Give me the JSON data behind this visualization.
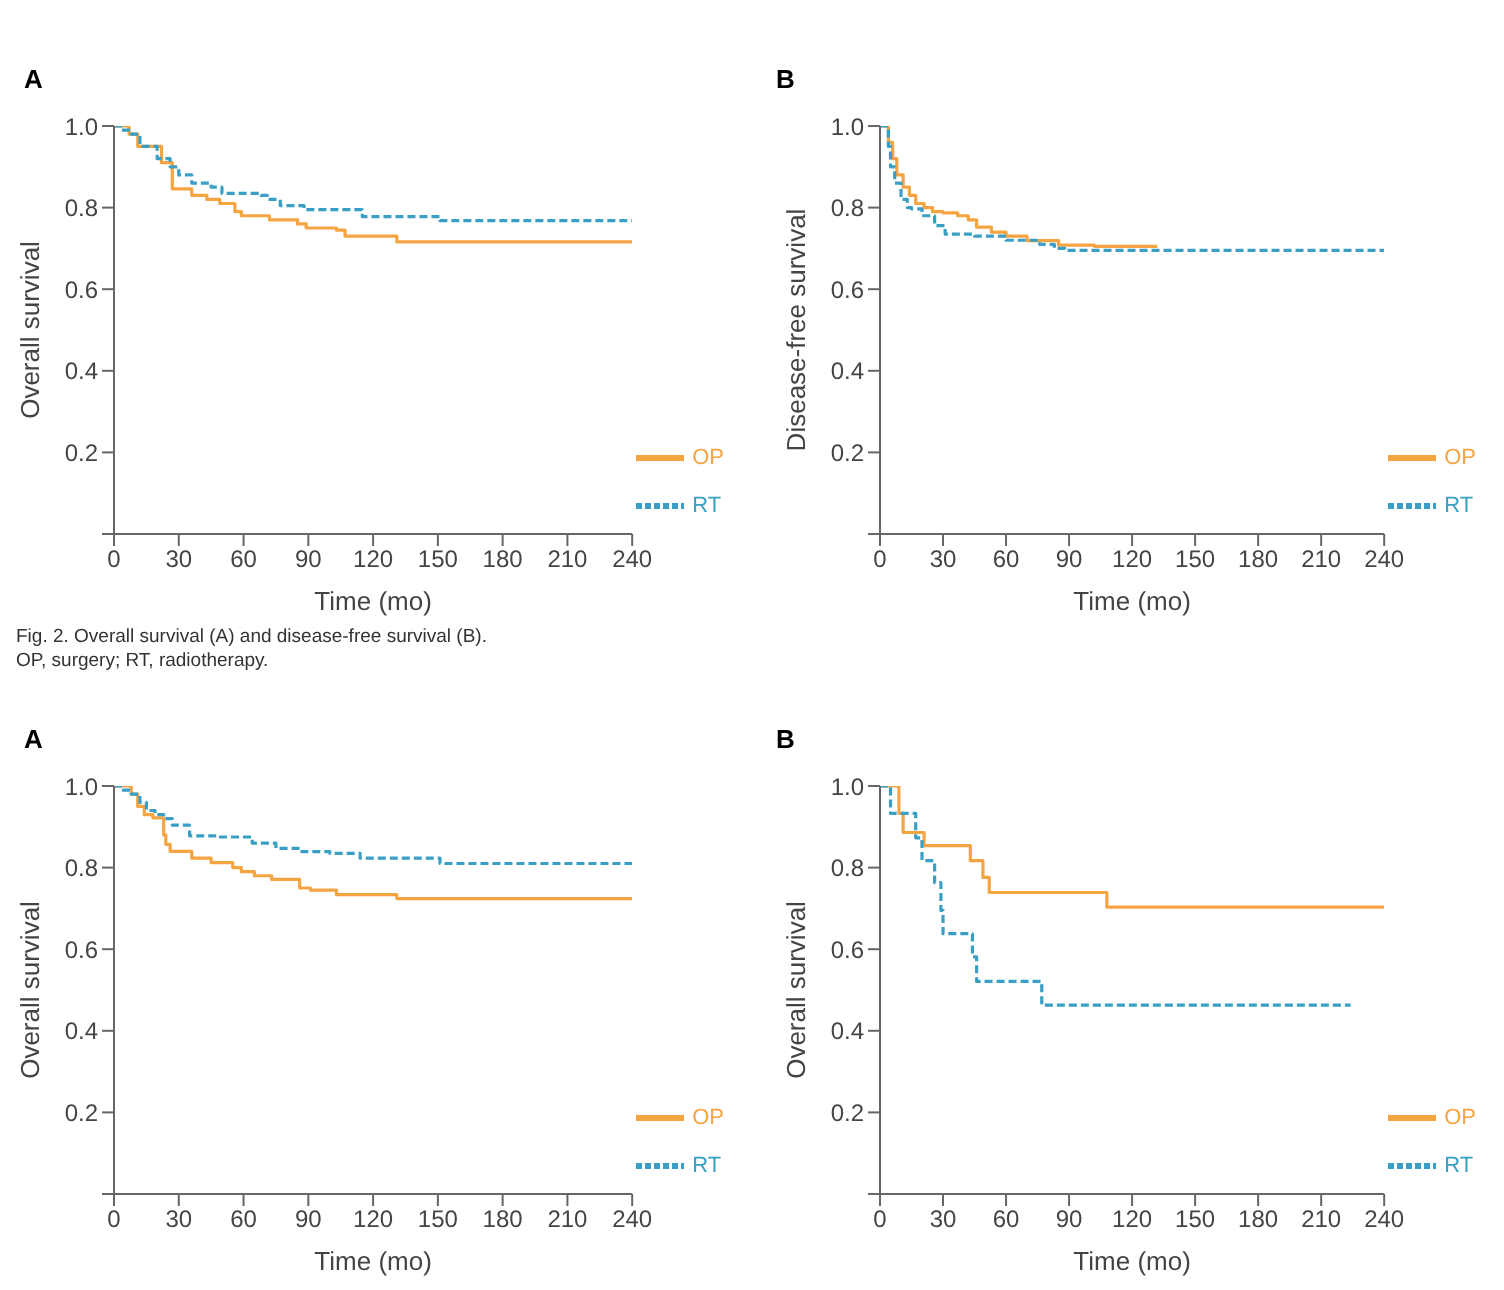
{
  "chart_data": [
    {
      "type": "step",
      "title": "A",
      "xlabel": "Time (mo)",
      "ylabel": "Overall survival",
      "xlim": [
        0,
        240
      ],
      "xticks": [
        0,
        30,
        60,
        90,
        120,
        150,
        180,
        210,
        240
      ],
      "ylim": [
        0,
        1
      ],
      "yticks": [
        {
          "value": 0,
          "label": null
        },
        0.2,
        0.4,
        0.6,
        {
          "value": 0.8,
          "label": "0.8"
        },
        {
          "value": 1,
          "label": "1.0"
        }
      ],
      "grid": false,
      "legend": "bottom right",
      "annotations": [
        "Fig. 2. Overall survival (A) and disease-free survival (B).",
        "OP, surgery; RT, radiotherapy."
      ],
      "series": [
        {
          "name": "OP",
          "color": "#f5a442",
          "line_style": "solid",
          "x": [
            0,
            7,
            11,
            22,
            27,
            36,
            43,
            49,
            56,
            59,
            72,
            85,
            89,
            103,
            107,
            131,
            240
          ],
          "values": [
            1,
            0.98,
            0.95,
            0.91,
            0.846,
            0.83,
            0.82,
            0.81,
            0.79,
            0.78,
            0.77,
            0.76,
            0.75,
            0.745,
            0.73,
            0.716,
            0.716
          ]
        },
        {
          "name": "RT",
          "color": "#3a9fc4",
          "line_style": "dashed",
          "x": [
            0,
            3,
            8,
            12,
            20,
            26,
            30,
            36,
            45,
            50,
            68,
            71,
            77,
            88,
            115,
            151,
            240
          ],
          "values": [
            1,
            0.99,
            0.98,
            0.95,
            0.92,
            0.9,
            0.88,
            0.86,
            0.85,
            0.835,
            0.83,
            0.82,
            0.805,
            0.795,
            0.778,
            0.768,
            0.768
          ]
        }
      ]
    },
    {
      "type": "step",
      "title": "B",
      "xlabel": "Time (mo)",
      "ylabel": "Disease-free survival",
      "xlim": [
        0,
        240
      ],
      "xticks": [
        0,
        30,
        60,
        90,
        120,
        150,
        180,
        210,
        240
      ],
      "ylim": [
        0,
        1
      ],
      "yticks": [
        {
          "value": 0,
          "label": null
        },
        0.2,
        0.4,
        0.6,
        {
          "value": 0.8,
          "label": "0.8"
        },
        {
          "value": 1,
          "label": "1.0"
        }
      ],
      "grid": false,
      "legend": "bottom right",
      "series": [
        {
          "name": "OP",
          "color": "#f5a442",
          "line_style": "solid",
          "x": [
            0,
            4,
            6,
            8,
            11,
            14,
            17,
            21,
            25,
            30,
            37,
            42,
            46,
            53,
            60,
            70,
            85,
            102,
            132
          ],
          "values": [
            1,
            0.96,
            0.92,
            0.88,
            0.85,
            0.83,
            0.81,
            0.8,
            0.79,
            0.787,
            0.78,
            0.77,
            0.752,
            0.74,
            0.73,
            0.719,
            0.708,
            0.705,
            0.705
          ]
        },
        {
          "name": "RT",
          "color": "#3a9fc4",
          "line_style": "dashed",
          "x": [
            0,
            4,
            5,
            7,
            10,
            13,
            15,
            20,
            26,
            31,
            45,
            60,
            76,
            83,
            88,
            240
          ],
          "values": [
            1,
            0.95,
            0.9,
            0.86,
            0.82,
            0.8,
            0.797,
            0.78,
            0.756,
            0.735,
            0.73,
            0.72,
            0.71,
            0.7,
            0.695,
            0.695
          ]
        }
      ]
    },
    {
      "type": "step",
      "title": "A",
      "xlabel": "Time (mo)",
      "ylabel": "Overall survival",
      "xlim": [
        0,
        240
      ],
      "xticks": [
        0,
        30,
        60,
        90,
        120,
        150,
        180,
        210,
        240
      ],
      "ylim": [
        0,
        1
      ],
      "yticks": [
        {
          "value": 0,
          "label": null
        },
        0.2,
        0.4,
        0.6,
        {
          "value": 0.8,
          "label": "0.8"
        },
        {
          "value": 1,
          "label": "1.0"
        }
      ],
      "grid": false,
      "legend": "bottom right",
      "series": [
        {
          "name": "OP",
          "color": "#f5a442",
          "line_style": "solid",
          "x": [
            0,
            8,
            11,
            14,
            18,
            23,
            24,
            26,
            29,
            36,
            45,
            55,
            59,
            65,
            73,
            86,
            91,
            103,
            131,
            240
          ],
          "values": [
            1,
            0.98,
            0.95,
            0.93,
            0.922,
            0.88,
            0.857,
            0.84,
            0.84,
            0.823,
            0.812,
            0.8,
            0.79,
            0.78,
            0.771,
            0.75,
            0.745,
            0.734,
            0.724,
            0.724
          ]
        },
        {
          "name": "RT",
          "color": "#3a9fc4",
          "line_style": "dashed",
          "x": [
            0,
            3,
            8,
            12,
            15,
            19,
            23,
            27,
            35,
            48,
            64,
            75,
            87,
            100,
            114,
            151,
            240
          ],
          "values": [
            1,
            0.99,
            0.98,
            0.96,
            0.94,
            0.93,
            0.92,
            0.904,
            0.878,
            0.875,
            0.86,
            0.847,
            0.839,
            0.835,
            0.823,
            0.81,
            0.81
          ]
        }
      ]
    },
    {
      "type": "step",
      "title": "B",
      "xlabel": "Time (mo)",
      "ylabel": "Overall survival",
      "xlim": [
        0,
        240
      ],
      "xticks": [
        0,
        30,
        60,
        90,
        120,
        150,
        180,
        210,
        240
      ],
      "ylim": [
        0,
        1
      ],
      "yticks": [
        {
          "value": 0,
          "label": null
        },
        0.2,
        0.4,
        0.6,
        {
          "value": 0.8,
          "label": "0.8"
        },
        {
          "value": 1,
          "label": "1.0"
        }
      ],
      "grid": false,
      "legend": "bottom right",
      "series": [
        {
          "name": "OP",
          "color": "#f5a442",
          "line_style": "solid",
          "x": [
            0,
            9,
            11,
            21,
            43,
            49,
            52,
            108,
            240
          ],
          "values": [
            1,
            0.933,
            0.886,
            0.854,
            0.817,
            0.776,
            0.739,
            0.703,
            0.703
          ]
        },
        {
          "name": "RT",
          "color": "#3a9fc4",
          "line_style": "dashed",
          "x": [
            0,
            5,
            17,
            20,
            26,
            29,
            30,
            44,
            46,
            77,
            224
          ],
          "values": [
            1,
            0.933,
            0.873,
            0.817,
            0.763,
            0.695,
            0.638,
            0.581,
            0.521,
            0.463,
            0.463
          ]
        }
      ]
    }
  ]
}
